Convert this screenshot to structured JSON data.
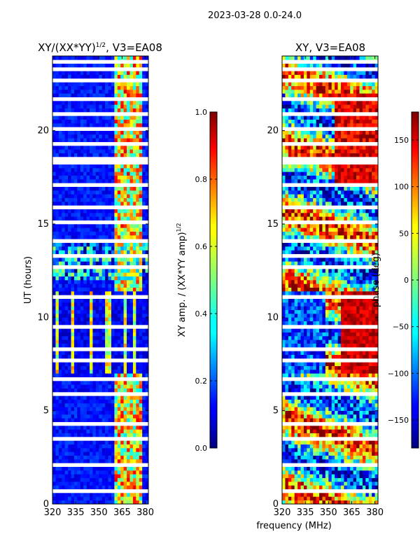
{
  "figure": {
    "suptitle": "2023-03-28 0.0-24.0",
    "shared_xlabel": "frequency (MHz)"
  },
  "chart_data": [
    {
      "type": "heatmap",
      "title": "XY/(XX*YY)",
      "title_sup": "1/2",
      "title_suffix": ", V3=EA08",
      "xlabel": "",
      "ylabel": "UT (hours)",
      "xlim": [
        320,
        382
      ],
      "ylim": [
        0,
        24
      ],
      "xticks": [
        "320",
        "335",
        "350",
        "365",
        "380"
      ],
      "yticks": [
        "0",
        "5",
        "10",
        "15",
        "20"
      ],
      "colorbar": {
        "label": "XY amp. / (XX*YY amp)",
        "label_sup": "1/2",
        "range": [
          0.0,
          1.0
        ],
        "ticks": [
          "0.0",
          "0.2",
          "0.4",
          "0.6",
          "0.8",
          "1.0"
        ],
        "colormap": "jet"
      },
      "notes": "Mostly low values (blue) below 359 MHz; high values (green-red) in 359-378 MHz band; noisy structure 12-14 UT and vertical streaks 7-11.5 UT."
    },
    {
      "type": "heatmap",
      "title": "XY",
      "title_sup": "",
      "title_suffix": ", V3=EA08",
      "xlabel": "",
      "ylabel": "",
      "xlim": [
        320,
        382
      ],
      "ylim": [
        0,
        24
      ],
      "xticks": [
        "320",
        "335",
        "350",
        "365",
        "380"
      ],
      "yticks": [
        "0",
        "5",
        "10",
        "15",
        "20"
      ],
      "colorbar": {
        "label": "phase (deg)",
        "label_sup": "",
        "range": [
          -180,
          180
        ],
        "ticks": [
          "-150",
          "-100",
          "-50",
          "0",
          "50",
          "100",
          "150"
        ],
        "colormap": "jet"
      },
      "notes": "Phase spans full range with horizontal banding; large red regions at 365-380 MHz between 7-11.5 UT and around 17-22 UT."
    }
  ],
  "colors": {
    "jet_dark_blue": "#00007f",
    "jet_blue": "#0000ff",
    "jet_cyan": "#00ffff",
    "jet_yellow": "#ffff00",
    "jet_red": "#ff0000",
    "jet_dark_red": "#7f0000"
  }
}
